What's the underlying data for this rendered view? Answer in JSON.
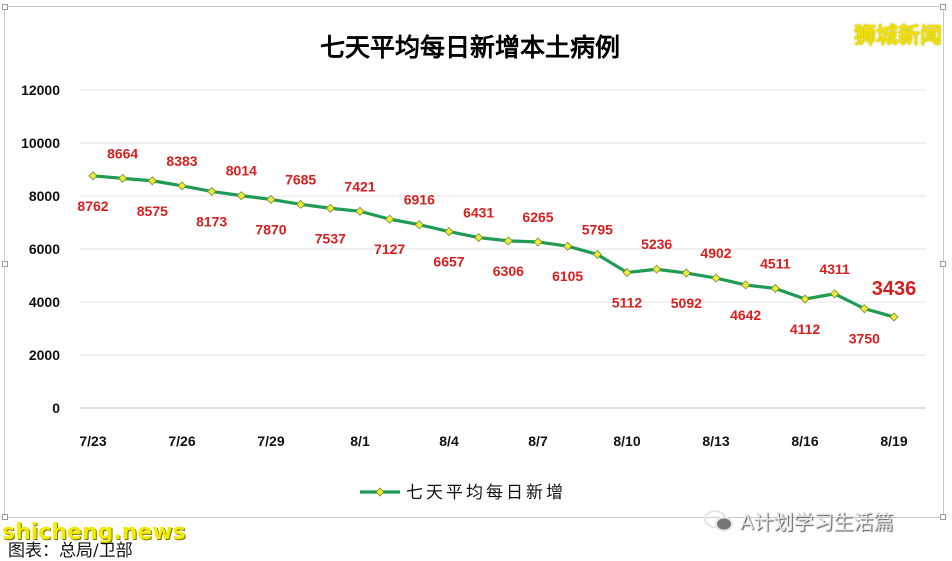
{
  "brand": "狮城新闻",
  "watermarks": {
    "left": "shicheng.news",
    "right": "A计划学习生活篇"
  },
  "caption": "图表：总局/卫部",
  "chart_data": {
    "type": "line",
    "title": "七天平均每日新增本土病例",
    "xlabel": "",
    "ylabel": "",
    "ylim": [
      0,
      12000
    ],
    "yticks": [
      0,
      2000,
      4000,
      6000,
      8000,
      10000,
      12000
    ],
    "x": [
      "7/23",
      "7/24",
      "7/25",
      "7/26",
      "7/27",
      "7/28",
      "7/29",
      "7/30",
      "7/31",
      "8/1",
      "8/2",
      "8/3",
      "8/4",
      "8/5",
      "8/6",
      "8/7",
      "8/8",
      "8/9",
      "8/10",
      "8/11",
      "8/12",
      "8/13",
      "8/14",
      "8/15",
      "8/16",
      "8/17",
      "8/18",
      "8/19"
    ],
    "xtick_labels": [
      "7/23",
      "7/26",
      "7/29",
      "8/1",
      "8/4",
      "8/7",
      "8/10",
      "8/13",
      "8/16",
      "8/19"
    ],
    "series": [
      {
        "name": "七天平均每日新增",
        "color": "#1f9b55",
        "marker_color": "#f2ea3a",
        "values": [
          8762,
          8664,
          8575,
          8383,
          8173,
          8014,
          7870,
          7685,
          7537,
          7421,
          7127,
          6916,
          6657,
          6431,
          6306,
          6265,
          6105,
          5795,
          5112,
          5236,
          5092,
          4902,
          4642,
          4511,
          4112,
          4311,
          3750,
          3436
        ]
      }
    ],
    "label_color": "#d62020",
    "grid": true,
    "legend": "bottom"
  }
}
